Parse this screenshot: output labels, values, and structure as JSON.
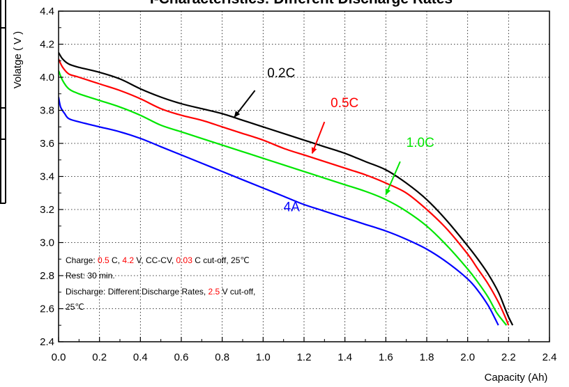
{
  "chart_data": {
    "type": "line",
    "title": "I-Characteristics: Different Discharge Rates",
    "xlabel": "Capacity  (Ah)",
    "ylabel": "Volatge ( V )",
    "xlim": [
      0.0,
      2.4
    ],
    "ylim": [
      2.4,
      4.4
    ],
    "xticks": [
      "0.0",
      "0.2",
      "0.4",
      "0.6",
      "0.8",
      "1.0",
      "1.2",
      "1.4",
      "1.6",
      "1.8",
      "2.0",
      "2.2",
      "2.4"
    ],
    "yticks": [
      "2.4",
      "2.6",
      "2.8",
      "3.0",
      "3.2",
      "3.4",
      "3.6",
      "3.8",
      "4.0",
      "4.2",
      "4.4"
    ],
    "grid": true,
    "legend": "none",
    "series": [
      {
        "name": "0.2C",
        "color": "#000000",
        "x": [
          0.0,
          0.02,
          0.05,
          0.1,
          0.2,
          0.3,
          0.4,
          0.5,
          0.6,
          0.7,
          0.8,
          0.9,
          1.0,
          1.1,
          1.2,
          1.3,
          1.4,
          1.5,
          1.6,
          1.7,
          1.8,
          1.9,
          2.0,
          2.05,
          2.1,
          2.15,
          2.18,
          2.2,
          2.22
        ],
        "y": [
          4.15,
          4.11,
          4.08,
          4.06,
          4.03,
          3.99,
          3.93,
          3.88,
          3.84,
          3.81,
          3.78,
          3.74,
          3.7,
          3.66,
          3.62,
          3.58,
          3.54,
          3.49,
          3.44,
          3.36,
          3.26,
          3.13,
          2.98,
          2.9,
          2.81,
          2.7,
          2.61,
          2.55,
          2.5
        ]
      },
      {
        "name": "0.5C",
        "color": "#ff0000",
        "x": [
          0.0,
          0.02,
          0.05,
          0.1,
          0.2,
          0.3,
          0.4,
          0.5,
          0.6,
          0.7,
          0.8,
          0.9,
          1.0,
          1.1,
          1.2,
          1.3,
          1.4,
          1.5,
          1.6,
          1.7,
          1.8,
          1.9,
          2.0,
          2.05,
          2.1,
          2.15,
          2.18,
          2.2
        ],
        "y": [
          4.11,
          4.06,
          4.02,
          4.0,
          3.96,
          3.92,
          3.87,
          3.81,
          3.77,
          3.74,
          3.7,
          3.66,
          3.62,
          3.57,
          3.53,
          3.49,
          3.45,
          3.41,
          3.36,
          3.3,
          3.2,
          3.08,
          2.93,
          2.84,
          2.75,
          2.64,
          2.56,
          2.5
        ]
      },
      {
        "name": "1.0C",
        "color": "#00e600",
        "x": [
          0.0,
          0.02,
          0.05,
          0.1,
          0.2,
          0.3,
          0.4,
          0.5,
          0.6,
          0.7,
          0.8,
          0.9,
          1.0,
          1.1,
          1.2,
          1.3,
          1.4,
          1.5,
          1.6,
          1.7,
          1.8,
          1.9,
          2.0,
          2.05,
          2.1,
          2.14,
          2.17,
          2.19
        ],
        "y": [
          4.04,
          3.98,
          3.93,
          3.9,
          3.86,
          3.82,
          3.77,
          3.71,
          3.67,
          3.63,
          3.59,
          3.55,
          3.51,
          3.47,
          3.43,
          3.39,
          3.35,
          3.31,
          3.26,
          3.19,
          3.1,
          2.98,
          2.84,
          2.76,
          2.67,
          2.58,
          2.53,
          2.5
        ]
      },
      {
        "name": "4A",
        "color": "#0000ff",
        "x": [
          0.0,
          0.01,
          0.03,
          0.05,
          0.1,
          0.2,
          0.3,
          0.4,
          0.5,
          0.6,
          0.7,
          0.8,
          0.9,
          1.0,
          1.1,
          1.2,
          1.3,
          1.4,
          1.5,
          1.6,
          1.7,
          1.8,
          1.9,
          2.0,
          2.05,
          2.1,
          2.13,
          2.15
        ],
        "y": [
          3.88,
          3.82,
          3.78,
          3.75,
          3.73,
          3.7,
          3.67,
          3.63,
          3.58,
          3.53,
          3.48,
          3.43,
          3.38,
          3.33,
          3.28,
          3.23,
          3.19,
          3.15,
          3.11,
          3.07,
          3.02,
          2.96,
          2.88,
          2.78,
          2.71,
          2.62,
          2.55,
          2.5
        ]
      }
    ],
    "annotations": [
      {
        "text": "0.2C",
        "color": "#000000",
        "x": 1.02,
        "y": 4.0,
        "arrow_from": [
          0.96,
          3.92
        ],
        "arrow_to": [
          0.86,
          3.76
        ]
      },
      {
        "text": "0.5C",
        "color": "#ff0000",
        "x": 1.33,
        "y": 3.82,
        "arrow_from": [
          1.3,
          3.73
        ],
        "arrow_to": [
          1.24,
          3.54
        ]
      },
      {
        "text": "1.0C",
        "color": "#00e600",
        "x": 1.7,
        "y": 3.58,
        "arrow_from": [
          1.67,
          3.49
        ],
        "arrow_to": [
          1.6,
          3.29
        ]
      },
      {
        "text": "4A",
        "color": "#0000ff",
        "x": 1.1,
        "y": 3.19
      }
    ],
    "notes": [
      {
        "key": "charge",
        "parts": [
          {
            "text": "Charge: ",
            "color": "#000000"
          },
          {
            "text": "0.5",
            "color": "#ff0000"
          },
          {
            "text": " C, ",
            "color": "#000000"
          },
          {
            "text": "4.2",
            "color": "#ff0000"
          },
          {
            "text": " V, CC-CV, ",
            "color": "#000000"
          },
          {
            "text": "0.03",
            "color": "#ff0000"
          },
          {
            "text": " C cut-off, 25℃",
            "color": "#000000"
          }
        ]
      },
      {
        "key": "rest",
        "parts": [
          {
            "text": "Rest: 30  min.",
            "color": "#000000"
          }
        ]
      },
      {
        "key": "discharge",
        "parts": [
          {
            "text": "Discharge: Different Discharge Rates, ",
            "color": "#000000"
          },
          {
            "text": "2.5",
            "color": "#ff0000"
          },
          {
            "text": " V cut-off,",
            "color": "#000000"
          }
        ]
      },
      {
        "key": "temp",
        "parts": [
          {
            "text": "25℃",
            "color": "#000000"
          }
        ]
      }
    ]
  }
}
